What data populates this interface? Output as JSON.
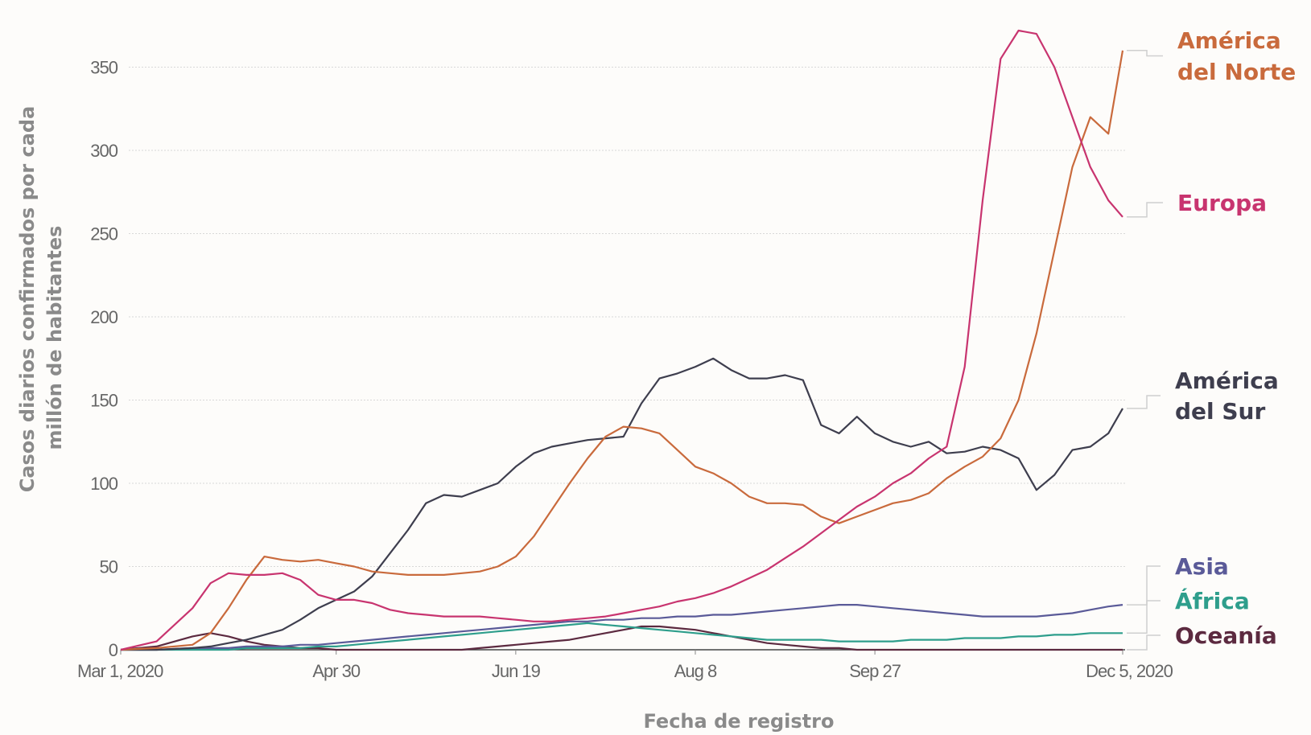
{
  "chart_data": {
    "type": "line",
    "xlabel": "Fecha de registro",
    "ylabel_lines": [
      "Casos diarios confirmados por cada",
      "millón de habitantes"
    ],
    "ylim": [
      0,
      380
    ],
    "yticks": [
      0,
      50,
      100,
      150,
      200,
      250,
      300,
      350
    ],
    "x_start_label": "Mar 1, 2020",
    "x_end_label": "Dec 5, 2020",
    "xticks": [
      {
        "day": 0,
        "label": "Mar 1, 2020"
      },
      {
        "day": 60,
        "label": "Apr 30"
      },
      {
        "day": 110,
        "label": "Jun 19"
      },
      {
        "day": 160,
        "label": "Aug 8"
      },
      {
        "day": 210,
        "label": "Sep 27"
      },
      {
        "day": 279,
        "label": "Dec 5, 2020"
      }
    ],
    "grid": true,
    "legend": "right, labels at series ends",
    "x": [
      0,
      10,
      20,
      25,
      30,
      35,
      40,
      45,
      50,
      55,
      60,
      65,
      70,
      75,
      80,
      85,
      90,
      95,
      100,
      105,
      110,
      115,
      120,
      125,
      130,
      135,
      140,
      145,
      150,
      155,
      160,
      165,
      170,
      175,
      180,
      185,
      190,
      195,
      200,
      205,
      210,
      215,
      220,
      225,
      230,
      235,
      240,
      245,
      250,
      255,
      260,
      265,
      270,
      275,
      279
    ],
    "series": [
      {
        "name": "América del Norte",
        "label_lines": [
          "América",
          "del Norte"
        ],
        "color": "#c96a3c",
        "values": [
          0,
          1,
          3,
          10,
          25,
          42,
          56,
          54,
          53,
          54,
          52,
          50,
          47,
          46,
          45,
          45,
          45,
          46,
          47,
          50,
          56,
          68,
          84,
          100,
          115,
          128,
          134,
          133,
          130,
          120,
          110,
          106,
          100,
          92,
          88,
          88,
          87,
          80,
          76,
          80,
          84,
          88,
          90,
          94,
          103,
          110,
          116,
          127,
          150,
          190,
          240,
          290,
          320,
          310,
          360
        ]
      },
      {
        "name": "Europa",
        "label_lines": [
          "Europa"
        ],
        "color": "#c8346f",
        "values": [
          0,
          5,
          25,
          40,
          46,
          45,
          45,
          46,
          42,
          33,
          30,
          30,
          28,
          24,
          22,
          21,
          20,
          20,
          20,
          19,
          18,
          17,
          17,
          18,
          19,
          20,
          22,
          24,
          26,
          29,
          31,
          34,
          38,
          43,
          48,
          55,
          62,
          70,
          78,
          86,
          92,
          100,
          106,
          115,
          122,
          170,
          270,
          355,
          372,
          370,
          350,
          320,
          290,
          270,
          260
        ]
      },
      {
        "name": "América del Sur",
        "label_lines": [
          "América",
          "del Sur"
        ],
        "color": "#3e3e4e",
        "values": [
          0,
          0,
          1,
          2,
          4,
          6,
          9,
          12,
          18,
          25,
          30,
          35,
          44,
          58,
          72,
          88,
          93,
          92,
          96,
          100,
          110,
          118,
          122,
          124,
          126,
          127,
          128,
          148,
          163,
          166,
          170,
          175,
          168,
          163,
          163,
          165,
          162,
          135,
          130,
          140,
          130,
          125,
          122,
          125,
          118,
          119,
          122,
          120,
          115,
          96,
          105,
          120,
          122,
          130,
          145
        ]
      },
      {
        "name": "Asia",
        "label_lines": [
          "Asia"
        ],
        "color": "#5a5a98",
        "values": [
          0,
          0,
          1,
          1,
          1,
          2,
          2,
          2,
          3,
          3,
          4,
          5,
          6,
          7,
          8,
          9,
          10,
          11,
          12,
          13,
          14,
          15,
          16,
          17,
          17,
          18,
          18,
          19,
          19,
          20,
          20,
          21,
          21,
          22,
          23,
          24,
          25,
          26,
          27,
          27,
          26,
          25,
          24,
          23,
          22,
          21,
          20,
          20,
          20,
          20,
          21,
          22,
          24,
          26,
          27
        ]
      },
      {
        "name": "África",
        "label_lines": [
          "África"
        ],
        "color": "#2e9e8c",
        "values": [
          0,
          0,
          0,
          0,
          0,
          1,
          1,
          1,
          1,
          2,
          2,
          3,
          4,
          5,
          6,
          7,
          8,
          9,
          10,
          11,
          12,
          13,
          14,
          15,
          16,
          15,
          14,
          13,
          12,
          11,
          10,
          9,
          8,
          7,
          6,
          6,
          6,
          6,
          5,
          5,
          5,
          5,
          6,
          6,
          6,
          7,
          7,
          7,
          8,
          8,
          9,
          9,
          10,
          10,
          10
        ]
      },
      {
        "name": "Oceanía",
        "label_lines": [
          "Oceanía"
        ],
        "color": "#5c2a40",
        "values": [
          0,
          2,
          8,
          10,
          8,
          5,
          3,
          2,
          1,
          1,
          0,
          0,
          0,
          0,
          0,
          0,
          0,
          0,
          1,
          2,
          3,
          4,
          5,
          6,
          8,
          10,
          12,
          14,
          14,
          13,
          12,
          10,
          8,
          6,
          4,
          3,
          2,
          1,
          1,
          0,
          0,
          0,
          0,
          0,
          0,
          0,
          0,
          0,
          0,
          0,
          0,
          0,
          0,
          0,
          0
        ]
      }
    ]
  }
}
